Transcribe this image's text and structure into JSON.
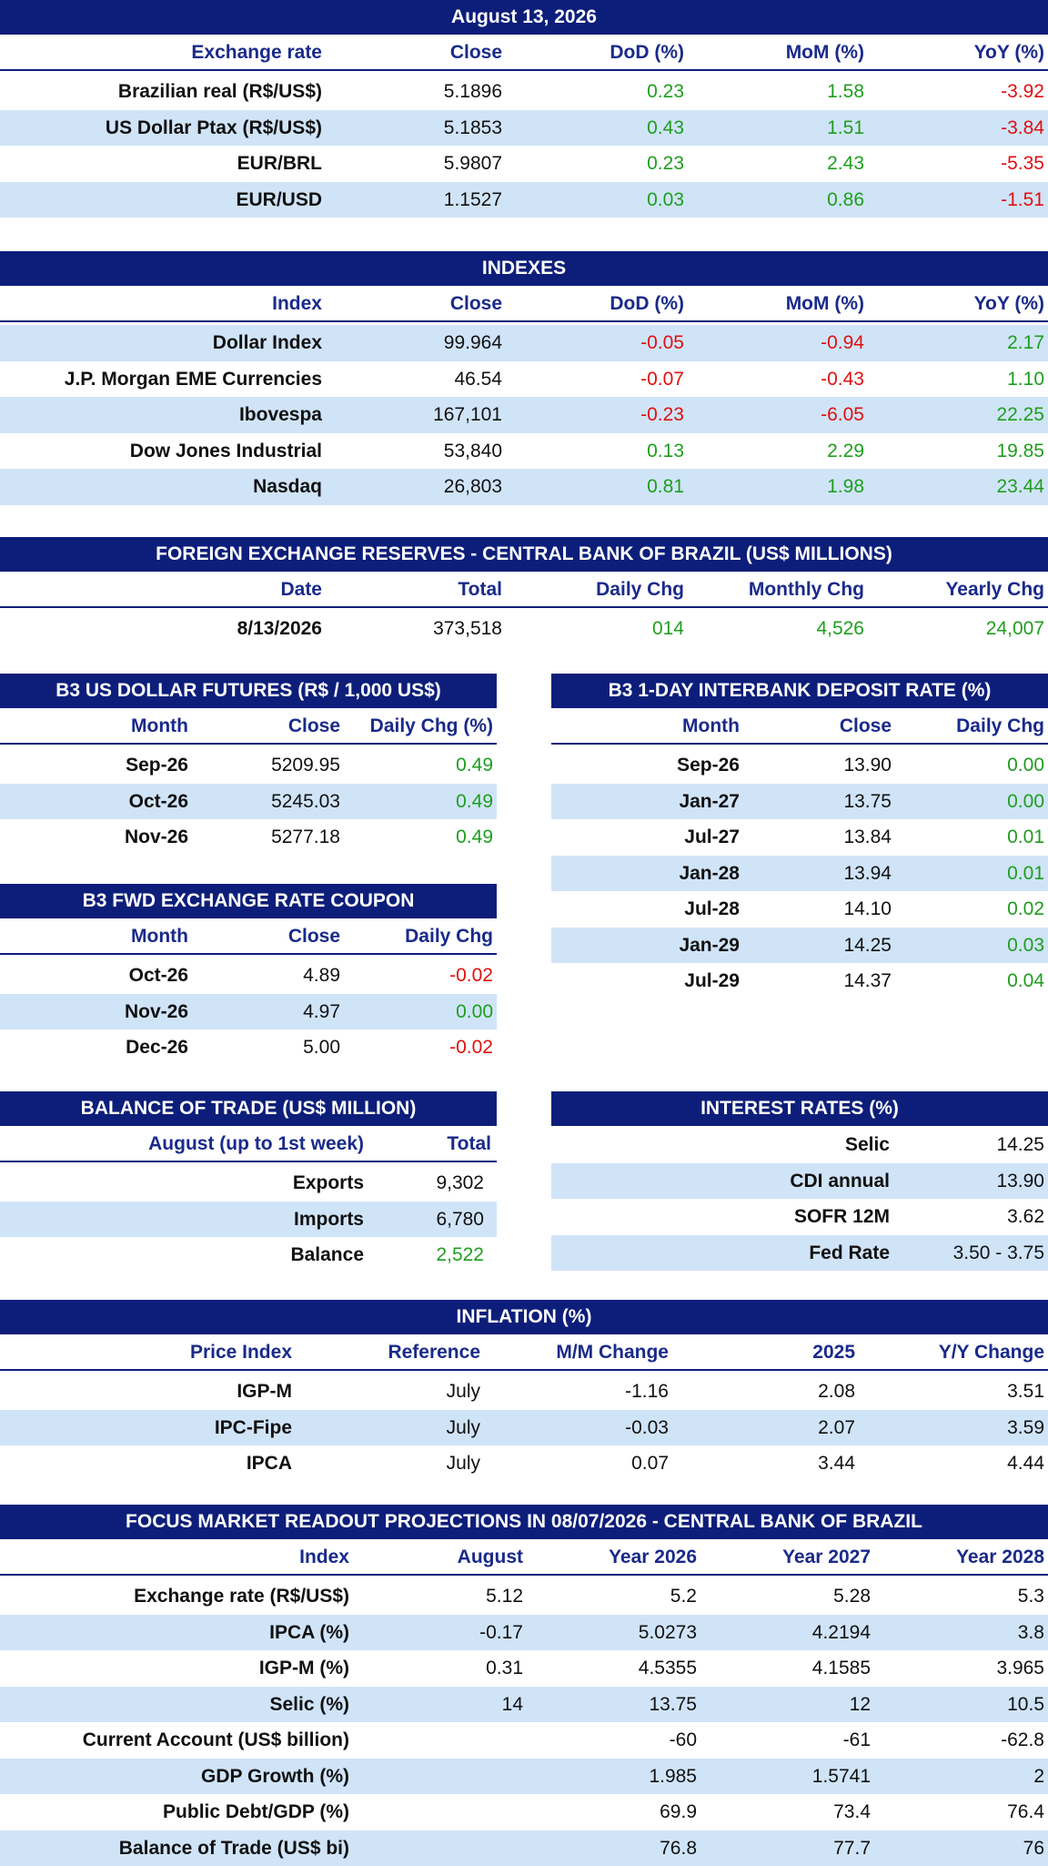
{
  "exchange": {
    "title": "August 13, 2026",
    "columns": [
      "Exchange rate",
      "Close",
      "DoD (%)",
      "MoM (%)",
      "YoY (%)"
    ],
    "rows": [
      [
        "Brazilian real (R$/US$)",
        "5.1896",
        "0.23",
        "1.58",
        "-3.92"
      ],
      [
        "US Dollar Ptax (R$/US$)",
        "5.1853",
        "0.43",
        "1.51",
        "-3.84"
      ],
      [
        "EUR/BRL",
        "5.9807",
        "0.23",
        "2.43",
        "-5.35"
      ],
      [
        "EUR/USD",
        "1.1527",
        "0.03",
        "0.86",
        "-1.51"
      ]
    ]
  },
  "indexes": {
    "title": "INDEXES",
    "columns": [
      "Index",
      "Close",
      "DoD (%)",
      "MoM (%)",
      "YoY (%)"
    ],
    "rows": [
      [
        "Dollar Index",
        "99.964",
        "-0.05",
        "-0.94",
        "2.17"
      ],
      [
        "J.P. Morgan EME Currencies",
        "46.54",
        "-0.07",
        "-0.43",
        "1.10"
      ],
      [
        "Ibovespa",
        "167,101",
        "-0.23",
        "-6.05",
        "22.25"
      ],
      [
        "Dow Jones Industrial",
        "53,840",
        "0.13",
        "2.29",
        "19.85"
      ],
      [
        "Nasdaq",
        "26,803",
        "0.81",
        "1.98",
        "23.44"
      ]
    ]
  },
  "reserves": {
    "title": "FOREIGN EXCHANGE RESERVES - CENTRAL BANK OF BRAZIL (US$ MILLIONS)",
    "columns": [
      "Date",
      "Total",
      "Daily Chg",
      "Monthly Chg",
      "Yearly Chg"
    ],
    "rows": [
      [
        "8/13/2026",
        "373,518",
        "014",
        "4,526",
        "24,007"
      ]
    ]
  },
  "usd_futures": {
    "title": "B3 US DOLLAR FUTURES (R$ / 1,000 US$)",
    "columns": [
      "Month",
      "Close",
      "Daily Chg (%)"
    ],
    "rows": [
      [
        "Sep-26",
        "5209.95",
        "0.49"
      ],
      [
        "Oct-26",
        "5245.03",
        "0.49"
      ],
      [
        "Nov-26",
        "5277.18",
        "0.49"
      ]
    ]
  },
  "interbank": {
    "title": "B3 1-DAY INTERBANK DEPOSIT RATE (%)",
    "columns": [
      "Month",
      "Close",
      "Daily Chg"
    ],
    "rows": [
      [
        "Sep-26",
        "13.90",
        "0.00"
      ],
      [
        "Jan-27",
        "13.75",
        "0.00"
      ],
      [
        "Jul-27",
        "13.84",
        "0.01"
      ],
      [
        "Jan-28",
        "13.94",
        "0.01"
      ],
      [
        "Jul-28",
        "14.10",
        "0.02"
      ],
      [
        "Jan-29",
        "14.25",
        "0.03"
      ],
      [
        "Jul-29",
        "14.37",
        "0.04"
      ]
    ]
  },
  "fwd_coupon": {
    "title": "B3 FWD EXCHANGE RATE COUPON",
    "columns": [
      "Month",
      "Close",
      "Daily Chg"
    ],
    "rows": [
      [
        "Oct-26",
        "4.89",
        "-0.02"
      ],
      [
        "Nov-26",
        "4.97",
        "0.00"
      ],
      [
        "Dec-26",
        "5.00",
        "-0.02"
      ]
    ]
  },
  "trade": {
    "title": "BALANCE OF TRADE (US$ MILLION)",
    "columns": [
      "August (up to 1st week)",
      "Total"
    ],
    "rows": [
      [
        "Exports",
        "9,302"
      ],
      [
        "Imports",
        "6,780"
      ],
      [
        "Balance",
        "2,522"
      ]
    ]
  },
  "rates": {
    "title": "INTEREST RATES (%)",
    "rows": [
      [
        "Selic",
        "14.25"
      ],
      [
        "CDI annual",
        "13.90"
      ],
      [
        "SOFR 12M",
        "3.62"
      ],
      [
        "Fed Rate",
        "3.50 - 3.75"
      ]
    ]
  },
  "inflation": {
    "title": "INFLATION (%)",
    "columns": [
      "Price Index",
      "Reference",
      "M/M Change",
      "2025",
      "Y/Y Change"
    ],
    "rows": [
      [
        "IGP-M",
        "July",
        "-1.16",
        "2.08",
        "3.51"
      ],
      [
        "IPC-Fipe",
        "July",
        "-0.03",
        "2.07",
        "3.59"
      ],
      [
        "IPCA",
        "July",
        "0.07",
        "3.44",
        "4.44"
      ]
    ]
  },
  "focus": {
    "title": "FOCUS MARKET READOUT PROJECTIONS IN 08/07/2026 - CENTRAL BANK OF BRAZIL",
    "columns": [
      "Index",
      "August",
      "Year 2026",
      "Year 2027",
      "Year 2028"
    ],
    "rows": [
      [
        "Exchange rate (R$/US$)",
        "5.12",
        "5.2",
        "5.28",
        "5.3"
      ],
      [
        "IPCA (%)",
        "-0.17",
        "5.0273",
        "4.2194",
        "3.8"
      ],
      [
        "IGP-M (%)",
        "0.31",
        "4.5355",
        "4.1585",
        "3.965"
      ],
      [
        "Selic (%)",
        "14",
        "13.75",
        "12",
        "10.5"
      ],
      [
        "Current Account (US$ billion)",
        "",
        "-60",
        "-61",
        "-62.8"
      ],
      [
        "GDP Growth (%)",
        "",
        "1.985",
        "1.5741",
        "2"
      ],
      [
        "Public Debt/GDP (%)",
        "",
        "69.9",
        "73.4",
        "76.4"
      ],
      [
        "Balance of Trade (US$ bi)",
        "",
        "76.8",
        "77.7",
        "76"
      ]
    ]
  },
  "colors": {
    "header_bg": "#0d1e7a",
    "column_text": "#1a2a8a",
    "alt_row": "#d0e4f8",
    "positive": "#1e9e1e",
    "negative": "#e01010"
  }
}
